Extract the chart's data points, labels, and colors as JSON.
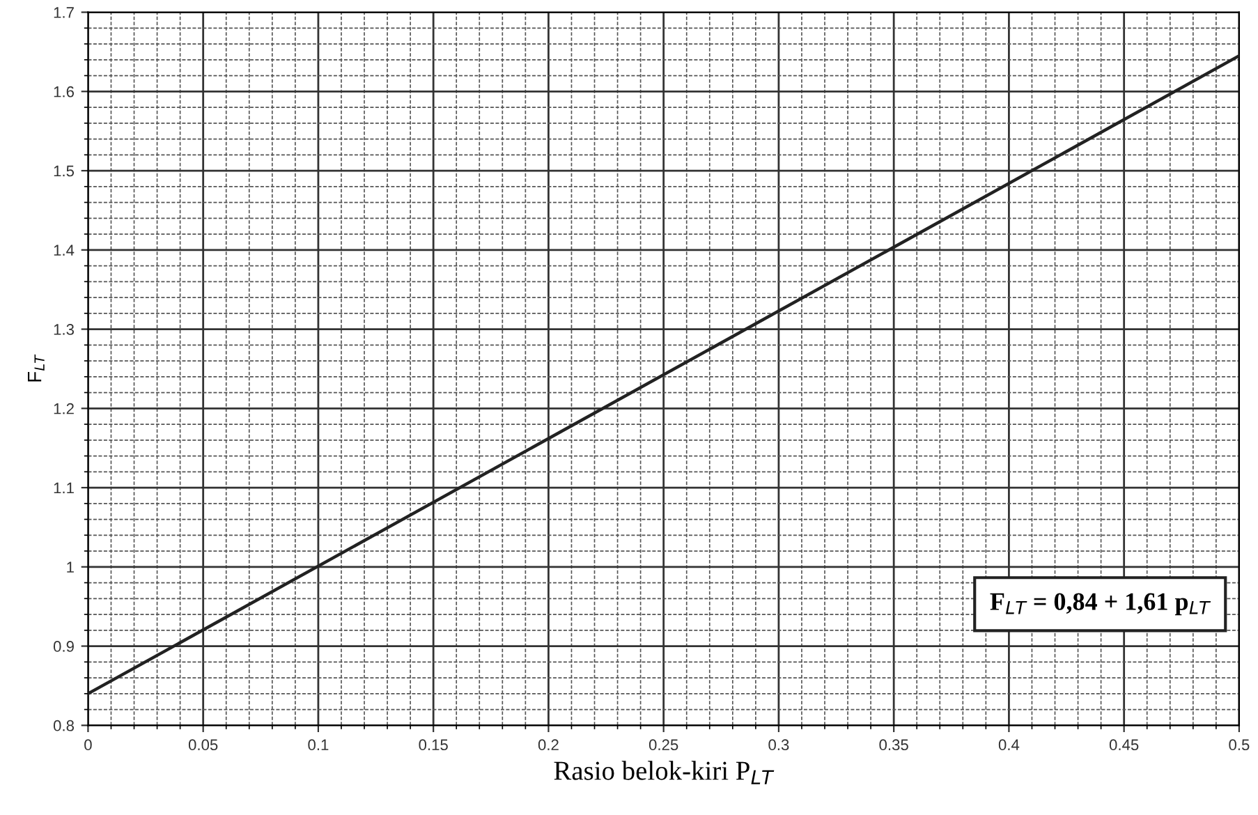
{
  "chart_data": {
    "type": "line",
    "xlabel": "Rasio belok-kiri P$_{LT}$",
    "ylabel": "F$_{LT}$",
    "x": [
      0,
      0.5
    ],
    "series": [
      {
        "color": "#222222",
        "values": [
          0.84,
          1.645
        ]
      }
    ],
    "xlim": [
      0,
      0.5
    ],
    "ylim": [
      0.8,
      1.7
    ],
    "xticks": [
      0,
      0.05,
      0.1,
      0.15,
      0.2,
      0.25,
      0.3,
      0.35,
      0.4,
      0.45,
      0.5
    ],
    "yticks": [
      0.8,
      0.9,
      1,
      1.1,
      1.2,
      1.3,
      1.4,
      1.5,
      1.6,
      1.7
    ],
    "grid": true,
    "marker": "none",
    "line_style": "solid",
    "annotations": [
      "F$_{LT}$ = 0,84 + 1,61 p$_{LT}$"
    ]
  }
}
